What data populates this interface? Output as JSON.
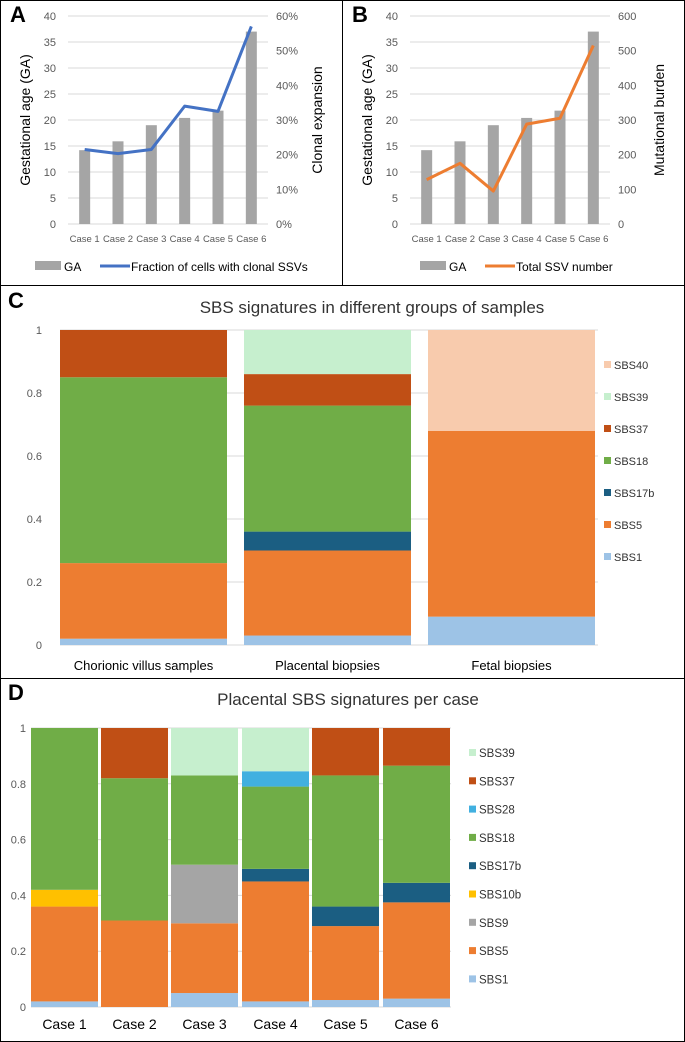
{
  "chart_data": [
    {
      "panel": "A",
      "type": "bar+line",
      "categories": [
        "Case 1",
        "Case 2",
        "Case 3",
        "Case 4",
        "Case 5",
        "Case 6"
      ],
      "ylabel": "Gestational age (GA)",
      "y2label": "Clonal expansion",
      "ylim": [
        0,
        40
      ],
      "yticks": [
        "0",
        "5",
        "10",
        "15",
        "20",
        "25",
        "30",
        "35",
        "40"
      ],
      "y2lim": [
        0,
        60
      ],
      "y2ticks": [
        "0%",
        "10%",
        "20%",
        "30%",
        "40%",
        "50%",
        "60%"
      ],
      "series": [
        {
          "name": "GA",
          "type": "bar",
          "color": "#a5a5a5",
          "values": [
            14.2,
            15.9,
            19.0,
            20.4,
            21.8,
            37.0
          ]
        },
        {
          "name": "Fraction of cells with clonal SSVs",
          "type": "line",
          "axis": "right",
          "color": "#4472c4",
          "values": [
            21.5,
            20.3,
            21.5,
            34.0,
            32.5,
            57.0
          ]
        }
      ]
    },
    {
      "panel": "B",
      "type": "bar+line",
      "categories": [
        "Case 1",
        "Case 2",
        "Case 3",
        "Case 4",
        "Case 5",
        "Case 6"
      ],
      "ylabel": "Gestational age (GA)",
      "y2label": "Mutational burden",
      "ylim": [
        0,
        40
      ],
      "yticks": [
        "0",
        "5",
        "10",
        "15",
        "20",
        "25",
        "30",
        "35",
        "40"
      ],
      "y2lim": [
        0,
        600
      ],
      "y2ticks": [
        "0",
        "100",
        "200",
        "300",
        "400",
        "500",
        "600"
      ],
      "series": [
        {
          "name": "GA",
          "type": "bar",
          "color": "#a5a5a5",
          "values": [
            14.2,
            15.9,
            19.0,
            20.4,
            21.8,
            37.0
          ]
        },
        {
          "name": "Total SSV number",
          "type": "line",
          "axis": "right",
          "color": "#ed7d31",
          "values": [
            128,
            175,
            95,
            288,
            305,
            515
          ]
        }
      ]
    },
    {
      "panel": "C",
      "type": "bar",
      "stacked": true,
      "title": "SBS signatures in different groups of samples",
      "categories": [
        "Chorionic villus samples",
        "Placental biopsies",
        "Fetal biopsies"
      ],
      "ylim": [
        0,
        1
      ],
      "yticks": [
        "0",
        "0.2",
        "0.4",
        "0.6",
        "0.8",
        "1"
      ],
      "series": [
        {
          "name": "SBS1",
          "color": "#9dc3e6",
          "values": [
            0.02,
            0.03,
            0.09
          ]
        },
        {
          "name": "SBS5",
          "color": "#ed7d31",
          "values": [
            0.24,
            0.27,
            0.59
          ]
        },
        {
          "name": "SBS17b",
          "color": "#1b5e82",
          "values": [
            0,
            0.06,
            0
          ]
        },
        {
          "name": "SBS18",
          "color": "#70ad47",
          "values": [
            0.59,
            0.4,
            0
          ]
        },
        {
          "name": "SBS37",
          "color": "#c04f15",
          "values": [
            0.15,
            0.1,
            0
          ]
        },
        {
          "name": "SBS39",
          "color": "#c6efce",
          "values": [
            0,
            0.14,
            0
          ]
        },
        {
          "name": "SBS40",
          "color": "#f8cbad",
          "values": [
            0,
            0,
            0.32
          ]
        }
      ]
    },
    {
      "panel": "D",
      "type": "bar",
      "stacked": true,
      "title": "Placental SBS signatures per case",
      "categories": [
        "Case 1",
        "Case 2",
        "Case 3",
        "Case 4",
        "Case 5",
        "Case 6"
      ],
      "ylim": [
        0,
        1
      ],
      "yticks": [
        "0",
        "0.2",
        "0.4",
        "0.6",
        "0.8",
        "1"
      ],
      "series": [
        {
          "name": "SBS1",
          "color": "#9dc3e6",
          "values": [
            0.02,
            0.0,
            0.05,
            0.02,
            0.025,
            0.03
          ]
        },
        {
          "name": "SBS5",
          "color": "#ed7d31",
          "values": [
            0.34,
            0.31,
            0.25,
            0.43,
            0.265,
            0.345
          ]
        },
        {
          "name": "SBS9",
          "color": "#a5a5a5",
          "values": [
            0,
            0,
            0.21,
            0,
            0,
            0
          ]
        },
        {
          "name": "SBS10b",
          "color": "#ffc000",
          "values": [
            0.06,
            0,
            0,
            0,
            0,
            0
          ]
        },
        {
          "name": "SBS17b",
          "color": "#1b5e82",
          "values": [
            0,
            0,
            0,
            0.045,
            0.07,
            0.07
          ]
        },
        {
          "name": "SBS18",
          "color": "#70ad47",
          "values": [
            0.58,
            0.51,
            0.32,
            0.295,
            0.47,
            0.42
          ]
        },
        {
          "name": "SBS28",
          "color": "#41b0e0",
          "values": [
            0,
            0,
            0,
            0.055,
            0,
            0
          ]
        },
        {
          "name": "SBS37",
          "color": "#c04f15",
          "values": [
            0,
            0.18,
            0,
            0,
            0.17,
            0.135
          ]
        },
        {
          "name": "SBS39",
          "color": "#c6efce",
          "values": [
            0,
            0,
            0.17,
            0.155,
            0,
            0
          ]
        }
      ]
    }
  ],
  "panel_labels": [
    "A",
    "B",
    "C",
    "D"
  ]
}
